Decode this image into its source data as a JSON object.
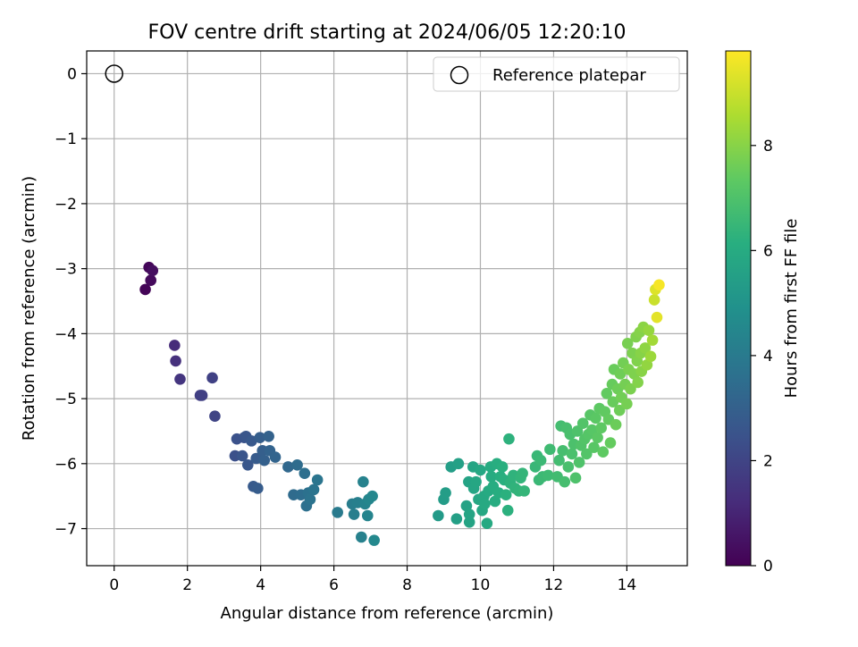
{
  "chart_data": {
    "type": "scatter",
    "title": "FOV centre drift starting at 2024/06/05 12:20:10",
    "xlabel": "Angular distance from reference (arcmin)",
    "ylabel": "Rotation from reference (arcmin)",
    "xlim": [
      -0.75,
      15.65
    ],
    "ylim": [
      -7.57,
      0.35
    ],
    "xticks": [
      0,
      2,
      4,
      6,
      8,
      10,
      12,
      14
    ],
    "yticks": [
      0,
      -1,
      -2,
      -3,
      -4,
      -5,
      -6,
      -7
    ],
    "xtick_labels": [
      "0",
      "2",
      "4",
      "6",
      "8",
      "10",
      "12",
      "14"
    ],
    "ytick_labels": [
      "0",
      "−1",
      "−2",
      "−3",
      "−4",
      "−5",
      "−6",
      "−7"
    ],
    "grid": true,
    "legend": {
      "placement": "top-right",
      "entries": [
        "Reference platepar"
      ]
    },
    "reference_point": {
      "name": "Reference platepar",
      "x": 0,
      "y": 0
    },
    "colorbar": {
      "label": "Hours from first FF file",
      "colormap": "viridis",
      "range": [
        0,
        9.8
      ],
      "ticks": [
        0,
        2,
        4,
        6,
        8
      ],
      "tick_labels": [
        "0",
        "2",
        "4",
        "6",
        "8"
      ]
    },
    "points": [
      [
        0.85,
        -3.32,
        0.1
      ],
      [
        0.95,
        -2.98,
        0.15
      ],
      [
        1.0,
        -3.18,
        0.25
      ],
      [
        1.05,
        -3.03,
        0.35
      ],
      [
        1.65,
        -4.18,
        1.2
      ],
      [
        1.68,
        -4.42,
        1.35
      ],
      [
        1.8,
        -4.7,
        1.5
      ],
      [
        2.35,
        -4.95,
        1.8
      ],
      [
        2.4,
        -4.95,
        1.85
      ],
      [
        2.68,
        -4.68,
        1.9
      ],
      [
        2.75,
        -5.27,
        2.0
      ],
      [
        3.3,
        -5.88,
        2.4
      ],
      [
        3.35,
        -5.62,
        2.45
      ],
      [
        3.55,
        -5.6,
        2.5
      ],
      [
        3.5,
        -5.88,
        2.55
      ],
      [
        3.6,
        -5.58,
        2.6
      ],
      [
        3.65,
        -6.02,
        2.65
      ],
      [
        3.75,
        -5.65,
        2.7
      ],
      [
        3.8,
        -6.35,
        2.75
      ],
      [
        3.88,
        -5.92,
        2.8
      ],
      [
        3.92,
        -6.38,
        2.85
      ],
      [
        3.98,
        -5.6,
        2.9
      ],
      [
        4.05,
        -5.8,
        2.95
      ],
      [
        4.1,
        -5.95,
        3.0
      ],
      [
        4.22,
        -5.58,
        3.05
      ],
      [
        4.25,
        -5.8,
        3.1
      ],
      [
        4.4,
        -5.9,
        3.15
      ],
      [
        4.75,
        -6.05,
        3.3
      ],
      [
        4.9,
        -6.48,
        3.4
      ],
      [
        5.0,
        -6.02,
        3.45
      ],
      [
        5.1,
        -6.48,
        3.5
      ],
      [
        5.2,
        -6.15,
        3.55
      ],
      [
        5.25,
        -6.65,
        3.6
      ],
      [
        5.3,
        -6.45,
        3.65
      ],
      [
        5.35,
        -6.55,
        3.7
      ],
      [
        5.45,
        -6.4,
        3.75
      ],
      [
        5.55,
        -6.25,
        3.8
      ],
      [
        6.1,
        -6.75,
        4.0
      ],
      [
        6.5,
        -6.62,
        4.1
      ],
      [
        6.55,
        -6.78,
        4.15
      ],
      [
        6.65,
        -6.6,
        4.2
      ],
      [
        6.75,
        -7.13,
        4.25
      ],
      [
        6.8,
        -6.28,
        4.3
      ],
      [
        6.85,
        -6.62,
        4.35
      ],
      [
        6.92,
        -6.8,
        4.4
      ],
      [
        6.95,
        -6.55,
        4.45
      ],
      [
        7.05,
        -6.5,
        4.5
      ],
      [
        7.1,
        -7.18,
        4.55
      ],
      [
        8.85,
        -6.8,
        5.3
      ],
      [
        9.0,
        -6.55,
        5.35
      ],
      [
        9.05,
        -6.45,
        5.4
      ],
      [
        9.2,
        -6.05,
        5.45
      ],
      [
        9.35,
        -6.85,
        5.5
      ],
      [
        9.4,
        -6.0,
        5.55
      ],
      [
        9.62,
        -6.65,
        5.6
      ],
      [
        9.68,
        -6.28,
        5.65
      ],
      [
        9.7,
        -6.9,
        5.68
      ],
      [
        9.7,
        -6.78,
        5.7
      ],
      [
        9.8,
        -6.05,
        5.72
      ],
      [
        9.82,
        -6.38,
        5.75
      ],
      [
        9.88,
        -6.28,
        5.78
      ],
      [
        9.95,
        -6.55,
        5.8
      ],
      [
        10.0,
        -6.1,
        5.82
      ],
      [
        10.05,
        -6.72,
        5.85
      ],
      [
        10.1,
        -6.5,
        5.88
      ],
      [
        10.12,
        -6.62,
        5.9
      ],
      [
        10.18,
        -6.92,
        5.92
      ],
      [
        10.22,
        -6.42,
        5.95
      ],
      [
        10.28,
        -6.05,
        5.98
      ],
      [
        10.3,
        -6.2,
        6.0
      ],
      [
        10.35,
        -6.35,
        6.02
      ],
      [
        10.4,
        -6.58,
        6.05
      ],
      [
        10.45,
        -6.0,
        6.08
      ],
      [
        10.5,
        -6.45,
        6.1
      ],
      [
        10.55,
        -6.2,
        6.12
      ],
      [
        10.6,
        -6.05,
        6.15
      ],
      [
        10.65,
        -6.25,
        6.18
      ],
      [
        10.7,
        -6.48,
        6.2
      ],
      [
        10.75,
        -6.72,
        6.22
      ],
      [
        10.78,
        -5.62,
        6.25
      ],
      [
        10.82,
        -6.3,
        6.28
      ],
      [
        10.9,
        -6.18,
        6.3
      ],
      [
        10.95,
        -6.38,
        6.32
      ],
      [
        11.05,
        -6.42,
        6.35
      ],
      [
        11.1,
        -6.22,
        6.38
      ],
      [
        11.15,
        -6.15,
        6.4
      ],
      [
        11.2,
        -6.42,
        6.42
      ],
      [
        11.5,
        -6.05,
        6.5
      ],
      [
        11.55,
        -5.88,
        6.52
      ],
      [
        11.6,
        -6.25,
        6.55
      ],
      [
        11.65,
        -5.95,
        6.58
      ],
      [
        11.7,
        -6.2,
        6.6
      ],
      [
        11.85,
        -6.18,
        6.65
      ],
      [
        11.9,
        -5.78,
        6.68
      ],
      [
        12.1,
        -6.2,
        6.72
      ],
      [
        12.15,
        -5.95,
        6.75
      ],
      [
        12.2,
        -5.42,
        6.78
      ],
      [
        12.25,
        -5.8,
        6.8
      ],
      [
        12.3,
        -6.28,
        6.82
      ],
      [
        12.35,
        -5.45,
        6.85
      ],
      [
        12.4,
        -6.05,
        6.88
      ],
      [
        12.45,
        -5.55,
        6.9
      ],
      [
        12.5,
        -5.85,
        6.92
      ],
      [
        12.55,
        -5.7,
        6.95
      ],
      [
        12.6,
        -6.22,
        6.98
      ],
      [
        12.65,
        -5.5,
        7.0
      ],
      [
        12.7,
        -5.98,
        7.02
      ],
      [
        12.75,
        -5.72,
        7.05
      ],
      [
        12.8,
        -5.38,
        7.08
      ],
      [
        12.85,
        -5.62,
        7.1
      ],
      [
        12.9,
        -5.85,
        7.12
      ],
      [
        12.95,
        -5.55,
        7.15
      ],
      [
        13.0,
        -5.25,
        7.18
      ],
      [
        13.05,
        -5.48,
        7.2
      ],
      [
        13.1,
        -5.75,
        7.22
      ],
      [
        13.15,
        -5.3,
        7.25
      ],
      [
        13.2,
        -5.6,
        7.28
      ],
      [
        13.25,
        -5.15,
        7.3
      ],
      [
        13.3,
        -5.45,
        7.32
      ],
      [
        13.35,
        -5.82,
        7.35
      ],
      [
        13.4,
        -5.2,
        7.38
      ],
      [
        13.45,
        -4.92,
        7.4
      ],
      [
        13.5,
        -5.32,
        7.42
      ],
      [
        13.55,
        -5.68,
        7.45
      ],
      [
        13.6,
        -4.78,
        7.48
      ],
      [
        13.62,
        -5.05,
        7.5
      ],
      [
        13.65,
        -4.55,
        7.52
      ],
      [
        13.7,
        -5.4,
        7.55
      ],
      [
        13.75,
        -4.85,
        7.58
      ],
      [
        13.8,
        -5.18,
        7.6
      ],
      [
        13.82,
        -4.62,
        7.62
      ],
      [
        13.85,
        -4.98,
        7.65
      ],
      [
        13.9,
        -4.45,
        7.68
      ],
      [
        13.95,
        -4.78,
        7.7
      ],
      [
        14.0,
        -5.08,
        7.72
      ],
      [
        14.02,
        -4.15,
        7.75
      ],
      [
        14.05,
        -4.55,
        7.78
      ],
      [
        14.1,
        -4.85,
        7.8
      ],
      [
        14.15,
        -4.3,
        7.82
      ],
      [
        14.2,
        -4.62,
        7.85
      ],
      [
        14.25,
        -4.05,
        7.88
      ],
      [
        14.28,
        -4.42,
        7.9
      ],
      [
        14.3,
        -4.75,
        7.92
      ],
      [
        14.35,
        -3.98,
        7.95
      ],
      [
        14.38,
        -4.3,
        7.98
      ],
      [
        14.4,
        -4.58,
        8.0
      ],
      [
        14.45,
        -3.9,
        8.05
      ],
      [
        14.5,
        -4.22,
        8.1
      ],
      [
        14.55,
        -4.48,
        8.15
      ],
      [
        14.6,
        -3.95,
        8.2
      ],
      [
        14.65,
        -4.35,
        8.3
      ],
      [
        14.7,
        -4.1,
        8.4
      ],
      [
        14.75,
        -3.48,
        9.0
      ],
      [
        14.78,
        -3.32,
        9.3
      ],
      [
        14.82,
        -3.75,
        9.4
      ],
      [
        14.88,
        -3.25,
        9.7
      ]
    ]
  }
}
